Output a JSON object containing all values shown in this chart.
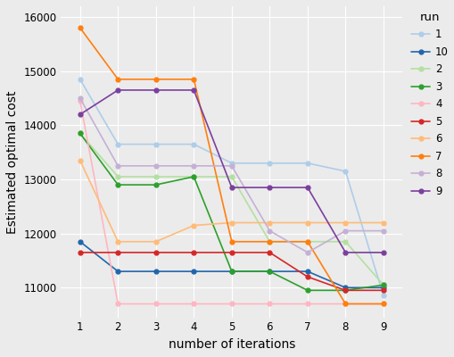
{
  "runs": {
    "1": [
      14850,
      13650,
      13650,
      13650,
      13300,
      13300,
      13300,
      13150,
      10850
    ],
    "10": [
      11850,
      11300,
      11300,
      11300,
      11300,
      11300,
      11300,
      11000,
      11000
    ],
    "2": [
      13850,
      13050,
      13050,
      13050,
      13050,
      11850,
      11850,
      11850,
      11050
    ],
    "3": [
      13850,
      12900,
      12900,
      13050,
      11300,
      11300,
      10950,
      10950,
      11050
    ],
    "4": [
      14450,
      10700,
      10700,
      10700,
      10700,
      10700,
      10700,
      10700,
      10700
    ],
    "5": [
      11650,
      11650,
      11650,
      11650,
      11650,
      11650,
      11200,
      10950,
      10950
    ],
    "6": [
      13350,
      11850,
      11850,
      12150,
      12200,
      12200,
      12200,
      12200,
      12200
    ],
    "7": [
      15800,
      14850,
      14850,
      14850,
      11850,
      11850,
      11850,
      10700,
      10700
    ],
    "8": [
      14500,
      13250,
      13250,
      13250,
      13250,
      12050,
      11650,
      12050,
      12050
    ],
    "9": [
      14200,
      14650,
      14650,
      14650,
      12850,
      12850,
      12850,
      11650,
      11650
    ]
  },
  "colors": {
    "1": "#AECDE8",
    "10": "#2166AC",
    "2": "#B3E0A0",
    "3": "#2CA02C",
    "4": "#FFB6C1",
    "5": "#D62728",
    "6": "#FFBB78",
    "7": "#FF7F0E",
    "8": "#C5B0D5",
    "9": "#7B3F9E"
  },
  "xlabel": "number of iterations",
  "ylabel": "Estimated optimal cost",
  "xlim": [
    0.5,
    9.5
  ],
  "ylim": [
    10450,
    16200
  ],
  "yticks": [
    11000,
    12000,
    13000,
    14000,
    15000,
    16000
  ],
  "xticks": [
    1,
    2,
    3,
    4,
    5,
    6,
    7,
    8,
    9
  ],
  "legend_title": "run",
  "bg_color": "#EBEBEB",
  "grid_color": "#FFFFFF",
  "run_order": [
    "1",
    "10",
    "2",
    "3",
    "4",
    "5",
    "6",
    "7",
    "8",
    "9"
  ]
}
